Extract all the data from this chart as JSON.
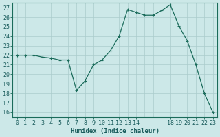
{
  "xlabel": "Humidex (Indice chaleur)",
  "x_values": [
    0,
    1,
    2,
    3,
    4,
    5,
    6,
    7,
    8,
    9,
    10,
    11,
    12,
    13,
    14,
    15,
    16,
    17,
    18,
    19,
    20,
    21,
    22,
    23
  ],
  "y_values": [
    22.0,
    22.0,
    22.0,
    21.8,
    21.7,
    21.5,
    21.5,
    18.3,
    19.3,
    21.0,
    21.5,
    22.5,
    24.0,
    26.8,
    26.5,
    26.2,
    26.2,
    26.7,
    27.3,
    25.1,
    23.5,
    21.0,
    18.0,
    16.0
  ],
  "line_color": "#1a6b5a",
  "marker_color": "#1a6b5a",
  "bg_color": "#cce8e8",
  "grid_color": "#aacccc",
  "axis_color": "#1a6b5a",
  "text_color": "#1a5c5c",
  "ylim": [
    15.5,
    27.5
  ],
  "xlim": [
    -0.5,
    23.5
  ],
  "yticks": [
    16,
    17,
    18,
    19,
    20,
    21,
    22,
    23,
    24,
    25,
    26,
    27
  ],
  "xticks": [
    0,
    1,
    2,
    3,
    4,
    5,
    6,
    7,
    8,
    9,
    10,
    11,
    12,
    13,
    14,
    18,
    19,
    20,
    21,
    22,
    23
  ],
  "xtick_labels": [
    "0",
    "1",
    "2",
    "3",
    "4",
    "5",
    "6",
    "7",
    "8",
    "9",
    "10",
    "11",
    "12",
    "13",
    "14",
    "18",
    "19",
    "20",
    "21",
    "22",
    "23"
  ],
  "font_size_label": 6.5,
  "font_size_tick": 6.0,
  "linewidth": 0.9,
  "markersize": 2.5
}
